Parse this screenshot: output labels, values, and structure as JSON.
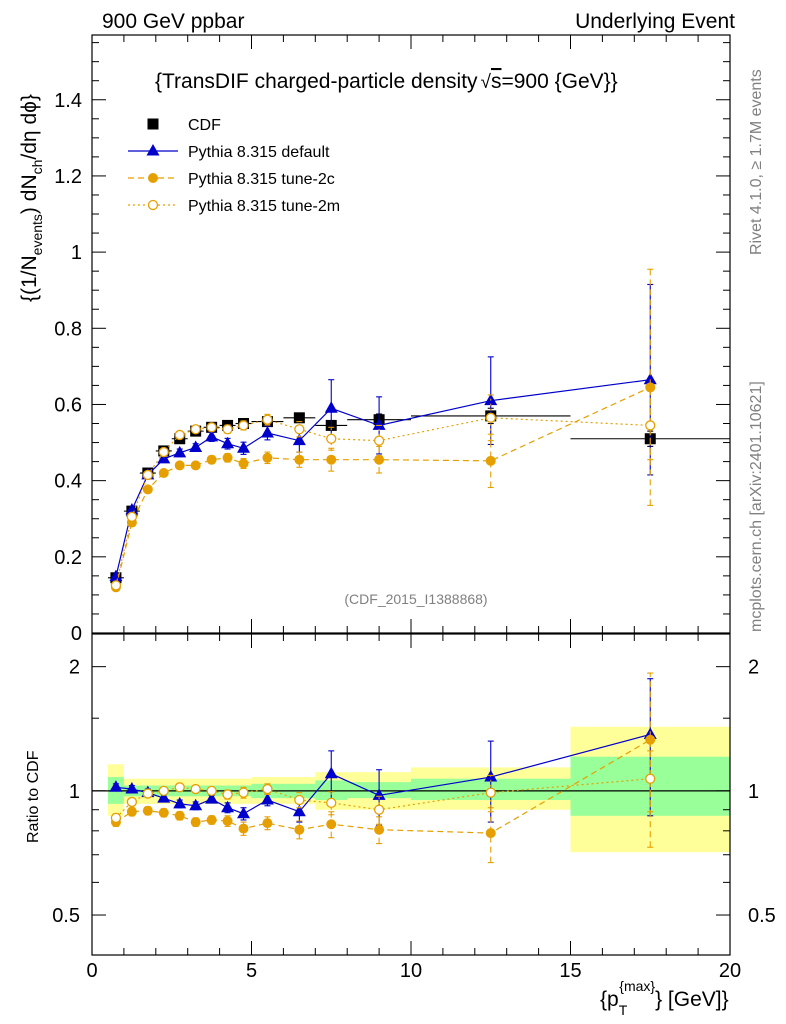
{
  "header": {
    "left": "900 GeV ppbar",
    "right": "Underlying Event"
  },
  "side_labels": {
    "rivet": "Rivet 4.1.0, ≥ 1.7M events",
    "mcplots": "mcplots.cern.ch [arXiv:2401.10621]"
  },
  "watermark": "(CDF_2015_I1388868)",
  "chart_data": [
    {
      "type": "scatter",
      "panel": "main",
      "title": "{TransDIF charged-particle density√s=900 {GeV}}",
      "title_parts": {
        "prefix": "{TransDIF charged-particle density",
        "sqrt": "√",
        "s": "s",
        "suffix": "=900 {GeV}}"
      },
      "ylabel": "{(1/N_events) dN_ch/dη dϕ}",
      "ylabel_parts": {
        "a": "{(1/N",
        "b": "events",
        "c": ") dN",
        "d": "ch",
        "e": "/dη  dϕ}"
      },
      "xlim": [
        0,
        20
      ],
      "ylim": [
        0,
        1.57
      ],
      "yticks": [
        0,
        0.2,
        0.4,
        0.6,
        0.8,
        1,
        1.2,
        1.4
      ],
      "ytick_labels": [
        "0",
        "0.2",
        "0.4",
        "0.6",
        "0.8",
        "1",
        "1.2",
        "1.4"
      ],
      "legend": [
        "CDF",
        "Pythia 8.315 default",
        "Pythia 8.315 tune-2c",
        "Pythia 8.315 tune-2m"
      ],
      "legend_position": "top-left",
      "series": [
        {
          "name": "CDF",
          "color": "#000000",
          "marker": "square",
          "x": [
            0.75,
            1.25,
            1.75,
            2.25,
            2.75,
            3.25,
            3.75,
            4.25,
            4.75,
            5.5,
            6.5,
            7.5,
            9.0,
            12.5,
            17.5
          ],
          "xerr": [
            0.25,
            0.25,
            0.25,
            0.25,
            0.25,
            0.25,
            0.25,
            0.25,
            0.25,
            0.5,
            0.5,
            0.5,
            1.0,
            2.5,
            2.5
          ],
          "values": [
            0.145,
            0.32,
            0.42,
            0.478,
            0.51,
            0.53,
            0.54,
            0.545,
            0.55,
            0.555,
            0.565,
            0.545,
            0.56,
            0.57,
            0.51
          ],
          "err": [
            0.003,
            0.004,
            0.005,
            0.005,
            0.005,
            0.005,
            0.005,
            0.005,
            0.005,
            0.006,
            0.008,
            0.01,
            0.015,
            0.02,
            0.02
          ]
        },
        {
          "name": "Pythia 8.315 default",
          "color": "#0000cc",
          "marker": "triangle",
          "linestyle": "solid",
          "x": [
            0.75,
            1.25,
            1.75,
            2.25,
            2.75,
            3.25,
            3.75,
            4.25,
            4.75,
            5.5,
            6.5,
            7.5,
            9.0,
            12.5,
            17.5
          ],
          "values": [
            0.148,
            0.323,
            0.415,
            0.457,
            0.473,
            0.487,
            0.515,
            0.497,
            0.485,
            0.525,
            0.505,
            0.59,
            0.545,
            0.61,
            0.665
          ],
          "err": [
            0.003,
            0.005,
            0.007,
            0.008,
            0.01,
            0.01,
            0.012,
            0.014,
            0.016,
            0.018,
            0.03,
            0.075,
            0.075,
            0.115,
            0.25
          ]
        },
        {
          "name": "Pythia 8.315 tune-2c",
          "color": "#e69f00",
          "marker": "circle",
          "linestyle": "dashed",
          "x": [
            0.75,
            1.25,
            1.75,
            2.25,
            2.75,
            3.25,
            3.75,
            4.25,
            4.75,
            5.5,
            6.5,
            7.5,
            9.0,
            12.5,
            17.5
          ],
          "values": [
            0.12,
            0.29,
            0.377,
            0.42,
            0.44,
            0.44,
            0.455,
            0.46,
            0.445,
            0.46,
            0.455,
            0.455,
            0.455,
            0.452,
            0.645
          ],
          "err": [
            0.003,
            0.005,
            0.007,
            0.008,
            0.008,
            0.009,
            0.01,
            0.011,
            0.013,
            0.015,
            0.02,
            0.03,
            0.035,
            0.07,
            0.31
          ]
        },
        {
          "name": "Pythia 8.315 tune-2m",
          "color": "#e69f00",
          "marker": "open-circle",
          "linestyle": "dotted",
          "x": [
            0.75,
            1.25,
            1.75,
            2.25,
            2.75,
            3.25,
            3.75,
            4.25,
            4.75,
            5.5,
            6.5,
            7.5,
            9.0,
            12.5,
            17.5
          ],
          "values": [
            0.125,
            0.305,
            0.415,
            0.475,
            0.52,
            0.535,
            0.54,
            0.535,
            0.545,
            0.56,
            0.535,
            0.51,
            0.505,
            0.565,
            0.545
          ],
          "err": [
            0.003,
            0.005,
            0.006,
            0.007,
            0.008,
            0.009,
            0.01,
            0.011,
            0.012,
            0.014,
            0.02,
            0.03,
            0.04,
            0.06,
            0.09
          ]
        }
      ]
    },
    {
      "type": "scatter",
      "panel": "ratio",
      "ylabel": "Ratio to CDF",
      "xlabel": "{p_T^{max}} [GeV]}",
      "xlabel_parts": {
        "a": "{p",
        "sub": "T",
        "sup": "{max}",
        "b": "} [GeV]}"
      },
      "xlim": [
        0,
        20
      ],
      "ylim": [
        0.4,
        2.4
      ],
      "yscale": "log",
      "xticks": [
        0,
        5,
        10,
        15,
        20
      ],
      "xtick_labels": [
        "0",
        "5",
        "10",
        "15",
        "20"
      ],
      "yticks": [
        0.5,
        1,
        2
      ],
      "ytick_labels": [
        "0.5",
        "1",
        "2"
      ],
      "bands": [
        {
          "x0": 0.5,
          "x1": 1.0,
          "g": [
            0.93,
            1.08
          ],
          "y": [
            0.87,
            1.16
          ]
        },
        {
          "x0": 1.0,
          "x1": 5.0,
          "g": [
            0.97,
            1.03
          ],
          "y": [
            0.93,
            1.07
          ]
        },
        {
          "x0": 5.0,
          "x1": 7.0,
          "g": [
            0.96,
            1.04
          ],
          "y": [
            0.93,
            1.08
          ]
        },
        {
          "x0": 7.0,
          "x1": 8.0,
          "g": [
            0.95,
            1.06
          ],
          "y": [
            0.9,
            1.11
          ]
        },
        {
          "x0": 8.0,
          "x1": 10.0,
          "g": [
            0.96,
            1.05
          ],
          "y": [
            0.9,
            1.11
          ]
        },
        {
          "x0": 10.0,
          "x1": 15.0,
          "g": [
            0.95,
            1.07
          ],
          "y": [
            0.9,
            1.14
          ]
        },
        {
          "x0": 15.0,
          "x1": 20.0,
          "g": [
            0.87,
            1.21
          ],
          "y": [
            0.71,
            1.43
          ]
        }
      ],
      "series": [
        {
          "name": "Pythia 8.315 default",
          "color": "#0000cc",
          "marker": "triangle",
          "linestyle": "solid",
          "x": [
            0.75,
            1.25,
            1.75,
            2.25,
            2.75,
            3.25,
            3.75,
            4.25,
            4.75,
            5.5,
            6.5,
            7.5,
            9.0,
            12.5,
            17.5
          ],
          "values": [
            1.02,
            1.01,
            0.99,
            0.96,
            0.93,
            0.92,
            0.955,
            0.91,
            0.88,
            0.95,
            0.89,
            1.1,
            0.975,
            1.08,
            1.37
          ],
          "err": [
            0.02,
            0.02,
            0.02,
            0.02,
            0.02,
            0.02,
            0.02,
            0.025,
            0.03,
            0.03,
            0.05,
            0.15,
            0.15,
            0.24,
            0.5
          ]
        },
        {
          "name": "Pythia 8.315 tune-2c",
          "color": "#e69f00",
          "marker": "circle",
          "linestyle": "dashed",
          "x": [
            0.75,
            1.25,
            1.75,
            2.25,
            2.75,
            3.25,
            3.75,
            4.25,
            4.75,
            5.5,
            6.5,
            7.5,
            9.0,
            12.5,
            17.5
          ],
          "values": [
            0.84,
            0.89,
            0.895,
            0.885,
            0.87,
            0.84,
            0.85,
            0.845,
            0.81,
            0.835,
            0.805,
            0.83,
            0.805,
            0.79,
            1.33
          ],
          "err": [
            0.02,
            0.02,
            0.02,
            0.02,
            0.02,
            0.02,
            0.02,
            0.025,
            0.03,
            0.03,
            0.04,
            0.06,
            0.06,
            0.12,
            0.6
          ]
        },
        {
          "name": "Pythia 8.315 tune-2m",
          "color": "#e69f00",
          "marker": "open-circle",
          "linestyle": "dotted",
          "x": [
            0.75,
            1.25,
            1.75,
            2.25,
            2.75,
            3.25,
            3.75,
            4.25,
            4.75,
            5.5,
            6.5,
            7.5,
            9.0,
            12.5,
            17.5
          ],
          "values": [
            0.86,
            0.94,
            0.985,
            1.0,
            1.02,
            1.01,
            1.0,
            0.98,
            0.99,
            1.01,
            0.95,
            0.935,
            0.9,
            0.99,
            1.07
          ],
          "err": [
            0.02,
            0.02,
            0.02,
            0.02,
            0.02,
            0.02,
            0.02,
            0.025,
            0.03,
            0.03,
            0.04,
            0.06,
            0.07,
            0.1,
            0.18
          ]
        }
      ]
    }
  ]
}
